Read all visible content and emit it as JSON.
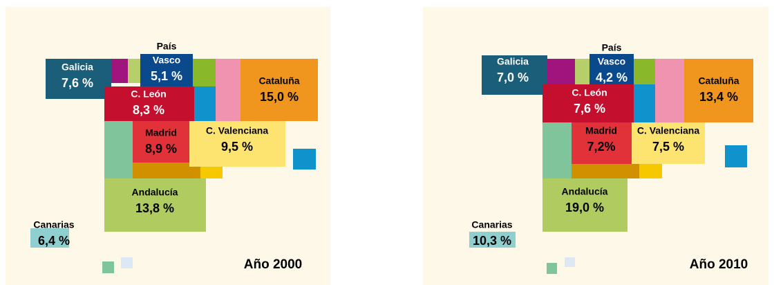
{
  "panels": [
    {
      "year_label": "Año 2000",
      "regions": [
        {
          "name_lines": [
            "Galicia"
          ],
          "value": 7.6,
          "value_label": "7,6 %"
        },
        {
          "name_lines": [
            "País",
            "Vasco"
          ],
          "value": 5.1,
          "value_label": "5,1 %"
        },
        {
          "name_lines": [
            "Cataluña"
          ],
          "value": 15.0,
          "value_label": "15,0 %"
        },
        {
          "name_lines": [
            "C. León"
          ],
          "value": 8.3,
          "value_label": "8,3 %"
        },
        {
          "name_lines": [
            "Madrid"
          ],
          "value": 8.9,
          "value_label": "8,9 %"
        },
        {
          "name_lines": [
            "C. Valenciana"
          ],
          "value": 9.5,
          "value_label": "9,5 %"
        },
        {
          "name_lines": [
            "Andalucía"
          ],
          "value": 13.8,
          "value_label": "13,8 %"
        },
        {
          "name_lines": [
            "Canarias"
          ],
          "value": 6.4,
          "value_label": "6,4 %"
        }
      ]
    },
    {
      "year_label": "Año 2010",
      "regions": [
        {
          "name_lines": [
            "Galicia"
          ],
          "value": 7.0,
          "value_label": "7,0 %"
        },
        {
          "name_lines": [
            "País",
            "Vasco"
          ],
          "value": 4.2,
          "value_label": "4,2 %"
        },
        {
          "name_lines": [
            "Cataluña"
          ],
          "value": 13.4,
          "value_label": "13,4 %"
        },
        {
          "name_lines": [
            "C. León"
          ],
          "value": 7.6,
          "value_label": "7,6 %"
        },
        {
          "name_lines": [
            "Madrid"
          ],
          "value": 7.2,
          "value_label": "7,2%"
        },
        {
          "name_lines": [
            "C. Valenciana"
          ],
          "value": 7.5,
          "value_label": "7,5 %"
        },
        {
          "name_lines": [
            "Andalucía"
          ],
          "value": 19.0,
          "value_label": "19,0 %"
        },
        {
          "name_lines": [
            "Canarias"
          ],
          "value": 10.3,
          "value_label": "10,3 %"
        }
      ]
    }
  ]
}
